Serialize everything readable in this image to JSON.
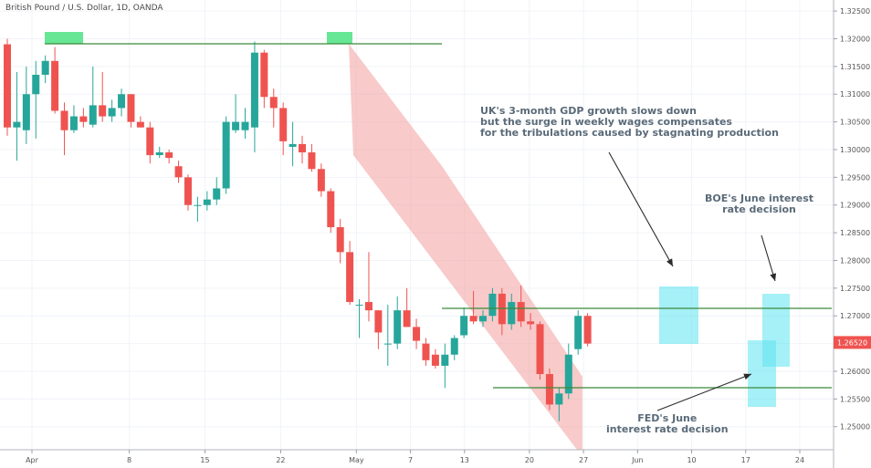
{
  "chart_data": {
    "type": "candlestick",
    "title": "British Pound / U.S. Dollar, 1D, OANDA",
    "ylim": [
      1.2465,
      1.3265
    ],
    "y_ticks": [
      "1.32500",
      "1.32000",
      "1.31500",
      "1.31000",
      "1.30500",
      "1.30000",
      "1.29500",
      "1.29000",
      "1.28500",
      "1.28000",
      "1.27500",
      "1.27000",
      "1.26500",
      "1.26000",
      "1.25500",
      "1.25000"
    ],
    "x_ticks": [
      "Apr",
      "8",
      "15",
      "22",
      "May",
      "7",
      "13",
      "20",
      "27",
      "Jun",
      "10",
      "17",
      "24"
    ],
    "current_price": "1.26520",
    "colors": {
      "up": "#26a69a",
      "down": "#ef5350",
      "channel": "#f4a6a6",
      "level": "#3a8a3a",
      "highlight": "#57e389",
      "box": "#5de3f0",
      "price_tag": "#ef5350"
    },
    "candles": [
      {
        "o": 1.319,
        "h": 1.32,
        "l": 1.3025,
        "c": 1.304
      },
      {
        "o": 1.304,
        "h": 1.314,
        "l": 1.298,
        "c": 1.305
      },
      {
        "o": 1.3035,
        "h": 1.315,
        "l": 1.301,
        "c": 1.31
      },
      {
        "o": 1.31,
        "h": 1.316,
        "l": 1.302,
        "c": 1.3135
      },
      {
        "o": 1.3135,
        "h": 1.317,
        "l": 1.312,
        "c": 1.316
      },
      {
        "o": 1.316,
        "h": 1.3185,
        "l": 1.3065,
        "c": 1.307
      },
      {
        "o": 1.307,
        "h": 1.3085,
        "l": 1.299,
        "c": 1.3035
      },
      {
        "o": 1.3035,
        "h": 1.308,
        "l": 1.303,
        "c": 1.306
      },
      {
        "o": 1.306,
        "h": 1.3075,
        "l": 1.304,
        "c": 1.305
      },
      {
        "o": 1.3045,
        "h": 1.315,
        "l": 1.304,
        "c": 1.308
      },
      {
        "o": 1.308,
        "h": 1.314,
        "l": 1.305,
        "c": 1.306
      },
      {
        "o": 1.306,
        "h": 1.309,
        "l": 1.305,
        "c": 1.3075
      },
      {
        "o": 1.3075,
        "h": 1.311,
        "l": 1.306,
        "c": 1.31
      },
      {
        "o": 1.31,
        "h": 1.31,
        "l": 1.304,
        "c": 1.305
      },
      {
        "o": 1.305,
        "h": 1.306,
        "l": 1.304,
        "c": 1.304
      },
      {
        "o": 1.304,
        "h": 1.305,
        "l": 1.2975,
        "c": 1.299
      },
      {
        "o": 1.299,
        "h": 1.3005,
        "l": 1.2985,
        "c": 1.2995
      },
      {
        "o": 1.2995,
        "h": 1.3,
        "l": 1.2975,
        "c": 1.2985
      },
      {
        "o": 1.297,
        "h": 1.298,
        "l": 1.294,
        "c": 1.295
      },
      {
        "o": 1.295,
        "h": 1.2955,
        "l": 1.289,
        "c": 1.29
      },
      {
        "o": 1.29,
        "h": 1.2915,
        "l": 1.287,
        "c": 1.29
      },
      {
        "o": 1.29,
        "h": 1.2925,
        "l": 1.289,
        "c": 1.291
      },
      {
        "o": 1.291,
        "h": 1.295,
        "l": 1.29,
        "c": 1.293
      },
      {
        "o": 1.293,
        "h": 1.306,
        "l": 1.292,
        "c": 1.305
      },
      {
        "o": 1.3035,
        "h": 1.31,
        "l": 1.303,
        "c": 1.305
      },
      {
        "o": 1.3035,
        "h": 1.3075,
        "l": 1.302,
        "c": 1.305
      },
      {
        "o": 1.304,
        "h": 1.3195,
        "l": 1.2995,
        "c": 1.3175
      },
      {
        "o": 1.3175,
        "h": 1.318,
        "l": 1.3075,
        "c": 1.3095
      },
      {
        "o": 1.3095,
        "h": 1.311,
        "l": 1.304,
        "c": 1.3075
      },
      {
        "o": 1.3075,
        "h": 1.3085,
        "l": 1.299,
        "c": 1.3015
      },
      {
        "o": 1.3005,
        "h": 1.305,
        "l": 1.297,
        "c": 1.301
      },
      {
        "o": 1.301,
        "h": 1.3025,
        "l": 1.2975,
        "c": 1.2995
      },
      {
        "o": 1.2995,
        "h": 1.301,
        "l": 1.296,
        "c": 1.2965
      },
      {
        "o": 1.2965,
        "h": 1.2975,
        "l": 1.2915,
        "c": 1.2925
      },
      {
        "o": 1.2925,
        "h": 1.293,
        "l": 1.285,
        "c": 1.286
      },
      {
        "o": 1.286,
        "h": 1.2875,
        "l": 1.2795,
        "c": 1.2815
      },
      {
        "o": 1.2815,
        "h": 1.2835,
        "l": 1.272,
        "c": 1.2725
      },
      {
        "o": 1.272,
        "h": 1.273,
        "l": 1.266,
        "c": 1.272
      },
      {
        "o": 1.2725,
        "h": 1.2815,
        "l": 1.269,
        "c": 1.271
      },
      {
        "o": 1.271,
        "h": 1.271,
        "l": 1.264,
        "c": 1.267
      },
      {
        "o": 1.265,
        "h": 1.272,
        "l": 1.261,
        "c": 1.265
      },
      {
        "o": 1.265,
        "h": 1.2735,
        "l": 1.264,
        "c": 1.271
      },
      {
        "o": 1.271,
        "h": 1.275,
        "l": 1.268,
        "c": 1.268
      },
      {
        "o": 1.268,
        "h": 1.2695,
        "l": 1.264,
        "c": 1.2655
      },
      {
        "o": 1.265,
        "h": 1.266,
        "l": 1.261,
        "c": 1.262
      },
      {
        "o": 1.263,
        "h": 1.264,
        "l": 1.2605,
        "c": 1.261
      },
      {
        "o": 1.261,
        "h": 1.265,
        "l": 1.257,
        "c": 1.263
      },
      {
        "o": 1.263,
        "h": 1.2665,
        "l": 1.262,
        "c": 1.266
      },
      {
        "o": 1.2665,
        "h": 1.2715,
        "l": 1.266,
        "c": 1.27
      },
      {
        "o": 1.27,
        "h": 1.2745,
        "l": 1.2685,
        "c": 1.269
      },
      {
        "o": 1.269,
        "h": 1.271,
        "l": 1.268,
        "c": 1.27
      },
      {
        "o": 1.27,
        "h": 1.275,
        "l": 1.269,
        "c": 1.274
      },
      {
        "o": 1.274,
        "h": 1.275,
        "l": 1.2665,
        "c": 1.2685
      },
      {
        "o": 1.2685,
        "h": 1.274,
        "l": 1.2675,
        "c": 1.2725
      },
      {
        "o": 1.2725,
        "h": 1.2755,
        "l": 1.268,
        "c": 1.269
      },
      {
        "o": 1.269,
        "h": 1.2705,
        "l": 1.2675,
        "c": 1.2685
      },
      {
        "o": 1.2685,
        "h": 1.269,
        "l": 1.2585,
        "c": 1.2595
      },
      {
        "o": 1.2595,
        "h": 1.2605,
        "l": 1.253,
        "c": 1.254
      },
      {
        "o": 1.254,
        "h": 1.257,
        "l": 1.251,
        "c": 1.256
      },
      {
        "o": 1.256,
        "h": 1.265,
        "l": 1.255,
        "c": 1.263
      },
      {
        "o": 1.264,
        "h": 1.271,
        "l": 1.263,
        "c": 1.27
      },
      {
        "o": 1.27,
        "h": 1.2705,
        "l": 1.2645,
        "c": 1.265
      }
    ],
    "annotations": {
      "gdp_text": [
        "UK's 3-month GDP growth slows down",
        "but the surge in weekly wages compensates",
        "for the tribulations caused by stagnating production"
      ],
      "boe_text": [
        "BOE's June interest",
        "rate decision"
      ],
      "fed_text": [
        "FED's June",
        "interest rate decision"
      ]
    }
  }
}
